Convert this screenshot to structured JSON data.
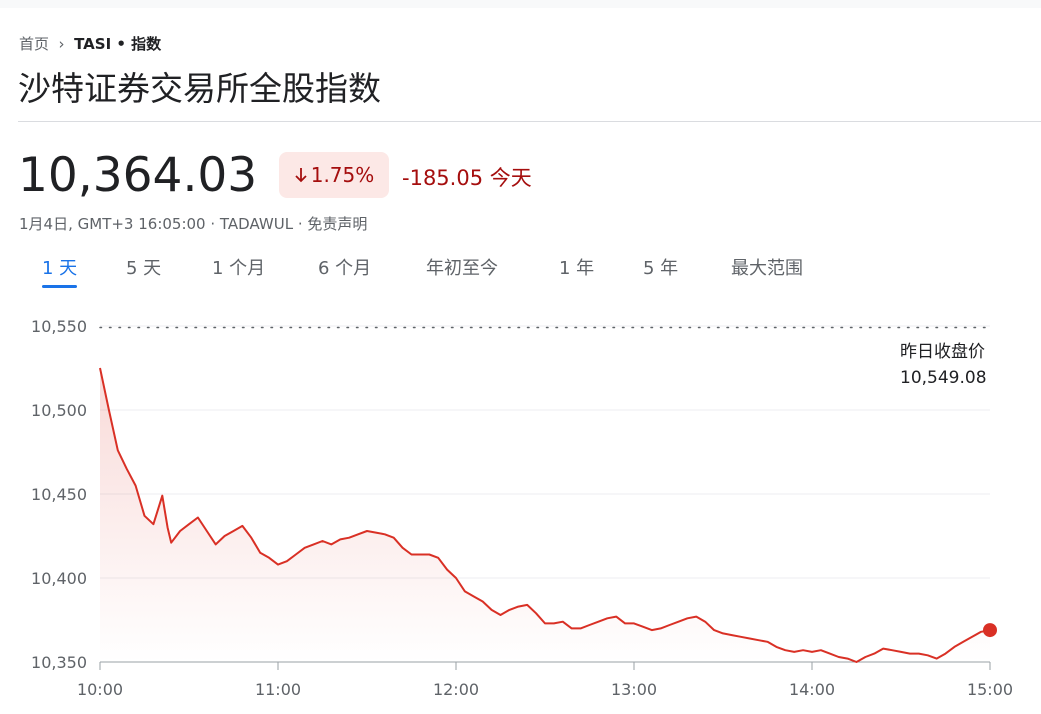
{
  "header": {
    "breadcrumb": [
      "首页",
      "TASI • 指数"
    ],
    "title": "沙特证券交易所全股指数",
    "price": "10,364.03",
    "change_percent": "1.75%",
    "change": "-185.05",
    "change_period": "今天",
    "timestamp": "1月4日, GMT+3 16:05:00 · TADAWUL · 免责声明"
  },
  "tabs": {
    "items": [
      "1 天",
      "5 天",
      "1 个月",
      "6 个月",
      "年初至今",
      "1 年",
      "5 年",
      "最大范围"
    ],
    "active": 0
  },
  "chart_data": {
    "type": "line",
    "color": "#d93025",
    "x": [
      10.0,
      10.05,
      10.1,
      10.15,
      10.2,
      10.25,
      10.3,
      10.35,
      10.38,
      10.4,
      10.45,
      10.5,
      10.55,
      10.6,
      10.65,
      10.7,
      10.75,
      10.8,
      10.85,
      10.9,
      10.95,
      11.0,
      11.05,
      11.1,
      11.15,
      11.2,
      11.25,
      11.3,
      11.35,
      11.4,
      11.45,
      11.5,
      11.55,
      11.6,
      11.65,
      11.7,
      11.75,
      11.8,
      11.85,
      11.9,
      11.95,
      12.0,
      12.05,
      12.1,
      12.15,
      12.2,
      12.25,
      12.3,
      12.35,
      12.4,
      12.45,
      12.5,
      12.55,
      12.6,
      12.65,
      12.7,
      12.75,
      12.8,
      12.85,
      12.9,
      12.95,
      13.0,
      13.05,
      13.1,
      13.15,
      13.2,
      13.25,
      13.3,
      13.35,
      13.4,
      13.45,
      13.5,
      13.55,
      13.6,
      13.65,
      13.7,
      13.75,
      13.8,
      13.85,
      13.9,
      13.95,
      14.0,
      14.05,
      14.1,
      14.15,
      14.2,
      14.25,
      14.3,
      14.35,
      14.4,
      14.45,
      14.5,
      14.55,
      14.6,
      14.65,
      14.7,
      14.75,
      14.8,
      14.85,
      14.9,
      14.95,
      15.0
    ],
    "values": [
      10525,
      10500,
      10476,
      10465,
      10455,
      10437,
      10432,
      10449,
      10430,
      10421,
      10428,
      10432,
      10436,
      10428,
      10420,
      10425,
      10428,
      10431,
      10424,
      10415,
      10412,
      10408,
      10410,
      10414,
      10418,
      10420,
      10422,
      10420,
      10423,
      10424,
      10426,
      10428,
      10427,
      10426,
      10424,
      10418,
      10414,
      10414,
      10414,
      10412,
      10405,
      10400,
      10392,
      10389,
      10386,
      10381,
      10378,
      10381,
      10383,
      10384,
      10379,
      10373,
      10373,
      10374,
      10370,
      10370,
      10372,
      10374,
      10376,
      10377,
      10373,
      10373,
      10371,
      10369,
      10370,
      10372,
      10374,
      10376,
      10377,
      10374,
      10369,
      10367,
      10366,
      10365,
      10364,
      10363,
      10362,
      10359,
      10357,
      10356,
      10357,
      10356,
      10357,
      10355,
      10353,
      10352,
      10350,
      10353,
      10355,
      10358,
      10357,
      10356,
      10355,
      10355,
      10354,
      10352,
      10355,
      10359,
      10362,
      10365,
      10368,
      10369
    ],
    "xlim": [
      10,
      15
    ],
    "xticks": [
      {
        "value": 10,
        "label": "10:00"
      },
      {
        "value": 11,
        "label": "11:00"
      },
      {
        "value": 12,
        "label": "12:00"
      },
      {
        "value": 13,
        "label": "13:00"
      },
      {
        "value": 14,
        "label": "14:00"
      },
      {
        "value": 15,
        "label": "15:00"
      }
    ],
    "ylim": [
      10350,
      10550
    ],
    "yticks": [
      {
        "value": 10350,
        "label": "10,350"
      },
      {
        "value": 10400,
        "label": "10,400"
      },
      {
        "value": 10450,
        "label": "10,450"
      },
      {
        "value": 10500,
        "label": "10,500"
      },
      {
        "value": 10550,
        "label": "10,550"
      }
    ],
    "grid": true,
    "reference": {
      "label": "昨日收盘价",
      "value": 10549.08,
      "value_label": "10,549.08"
    }
  }
}
